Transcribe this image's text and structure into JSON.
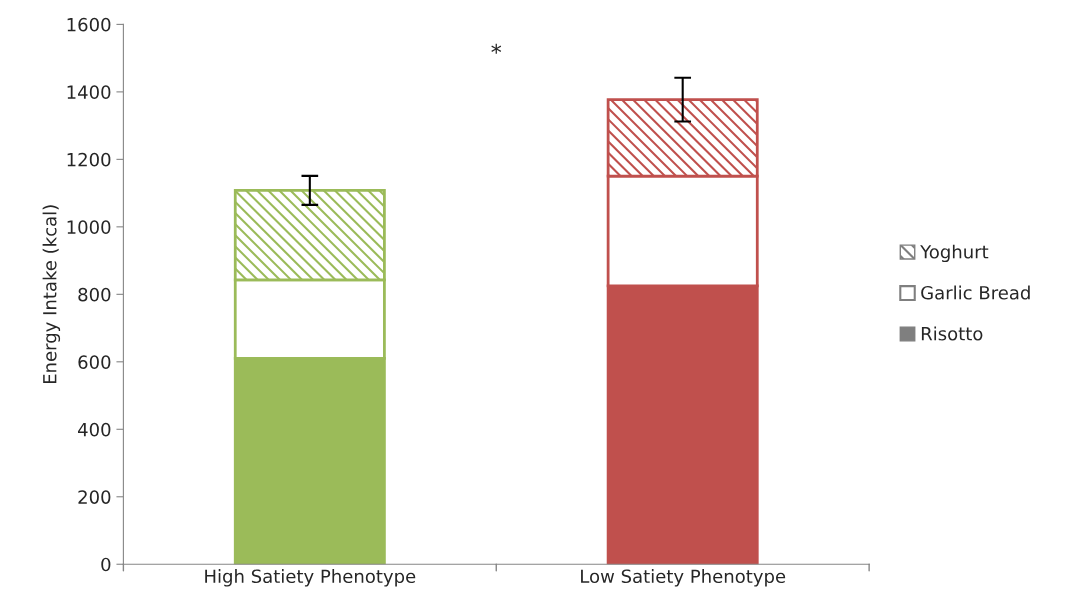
{
  "chart_data": {
    "type": "bar",
    "stacked": true,
    "ylabel": "Energy Intake (kcal)",
    "categories": [
      "High Satiety Phenotype",
      "Low Satiety Phenotype"
    ],
    "series": [
      {
        "name": "Risotto",
        "colors": [
          "#9bbb59",
          "#c0504d"
        ],
        "values": [
          610,
          825
        ]
      },
      {
        "name": "Garlic Bread",
        "colors": [
          "#9bbb59",
          "#c0504d"
        ],
        "values": [
          233,
          325
        ]
      },
      {
        "name": "Yoghurt",
        "colors": [
          "#9bbb59",
          "#c0504d"
        ],
        "values": [
          265,
          227
        ],
        "errors": [
          43,
          65
        ]
      }
    ],
    "annotations": [
      "*"
    ],
    "ylim": [
      0,
      1600
    ],
    "yticks": [
      0,
      200,
      400,
      600,
      800,
      1000,
      1200,
      1400,
      1600
    ],
    "grid": false,
    "legend": "right"
  }
}
